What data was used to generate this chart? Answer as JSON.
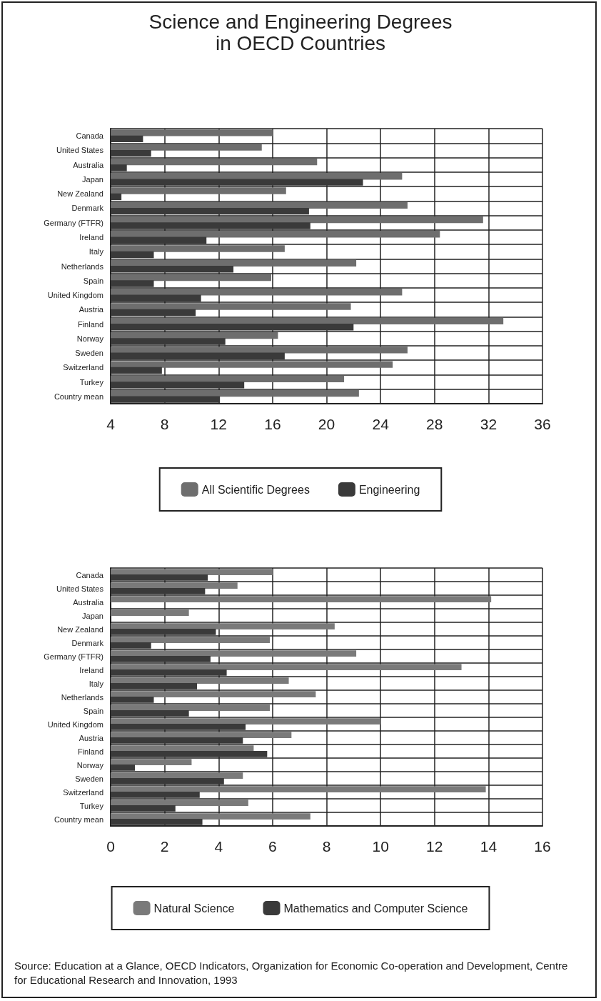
{
  "chart_data": [
    {
      "type": "bar",
      "title": "Science and Engineering Degrees\nin OECD Countries",
      "orientation": "horizontal",
      "categories": [
        "Canada",
        "United States",
        "Australia",
        "Japan",
        "New Zealand",
        "Denmark",
        "Germany (FTFR)",
        "Ireland",
        "Italy",
        "Netherlands",
        "Spain",
        "United Kingdom",
        "Austria",
        "Finland",
        "Norway",
        "Sweden",
        "Switzerland",
        "Turkey",
        "Country mean"
      ],
      "series": [
        {
          "name": "All Scientific Degrees",
          "color": "#6e6e6e",
          "values": [
            16.0,
            15.2,
            19.3,
            25.6,
            17.0,
            26.0,
            31.6,
            28.4,
            16.9,
            22.2,
            15.9,
            25.6,
            21.8,
            33.1,
            16.4,
            26.0,
            24.9,
            21.3,
            22.4
          ]
        },
        {
          "name": "Engineering",
          "color": "#3a3a3a",
          "values": [
            6.4,
            7.0,
            5.2,
            22.7,
            4.8,
            18.7,
            18.8,
            11.1,
            7.2,
            13.1,
            7.2,
            10.7,
            10.3,
            22.0,
            12.5,
            16.9,
            7.8,
            13.9,
            12.1
          ]
        }
      ],
      "xlim": [
        4,
        36
      ],
      "xticks": [
        4,
        8,
        12,
        16,
        20,
        24,
        28,
        32,
        36
      ],
      "grid": true,
      "legend": "bottom"
    },
    {
      "type": "bar",
      "orientation": "horizontal",
      "categories": [
        "Canada",
        "United States",
        "Australia",
        "Japan",
        "New Zealand",
        "Denmark",
        "Germany (FTFR)",
        "Ireland",
        "Italy",
        "Netherlands",
        "Spain",
        "United Kingdom",
        "Austria",
        "Finland",
        "Norway",
        "Sweden",
        "Switzerland",
        "Turkey",
        "Country mean"
      ],
      "series": [
        {
          "name": "Natural Science",
          "color": "#7a7a7a",
          "values": [
            6.0,
            4.7,
            14.1,
            2.9,
            8.3,
            5.9,
            9.1,
            13.0,
            6.6,
            7.6,
            5.9,
            10.0,
            6.7,
            5.3,
            3.0,
            4.9,
            13.9,
            5.1,
            7.4
          ]
        },
        {
          "name": "Mathematics and Computer Science",
          "color": "#3a3a3a",
          "values": [
            3.6,
            3.5,
            null,
            null,
            3.9,
            1.5,
            3.7,
            4.3,
            3.2,
            1.6,
            2.9,
            5.0,
            4.9,
            5.8,
            0.9,
            4.2,
            3.3,
            2.4,
            3.4
          ]
        }
      ],
      "xlim": [
        0,
        16
      ],
      "xticks": [
        0,
        2,
        4,
        6,
        8,
        10,
        12,
        14,
        16
      ],
      "grid": true,
      "legend": "bottom",
      "annotations": [
        "Source: Education at a Glance, OECD Indicators, Organization for Economic Co-operation and Development, Centre for Educational Research and Innovation, 1993"
      ]
    }
  ]
}
